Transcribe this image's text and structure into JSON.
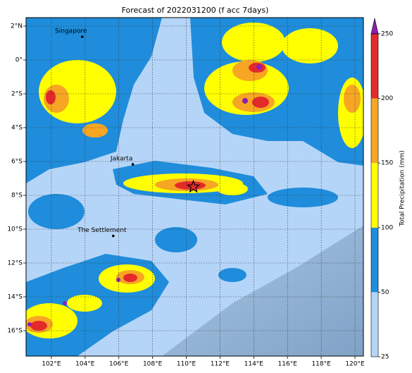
{
  "title": "Forecast of 2022031200 (f acc 7days)",
  "map": {
    "lon_range": [
      100.5,
      120.5
    ],
    "lat_range": [
      -17.5,
      2.5
    ],
    "lon_ticks": [
      {
        "value": 102,
        "label": "102°E"
      },
      {
        "value": 104,
        "label": "104°E"
      },
      {
        "value": 106,
        "label": "106°E"
      },
      {
        "value": 108,
        "label": "108°E"
      },
      {
        "value": 110,
        "label": "110°E"
      },
      {
        "value": 112,
        "label": "112°E"
      },
      {
        "value": 114,
        "label": "114°E"
      },
      {
        "value": 116,
        "label": "116°E"
      },
      {
        "value": 118,
        "label": "118°E"
      },
      {
        "value": 120,
        "label": "120°E"
      }
    ],
    "lat_ticks": [
      {
        "value": 2,
        "label": "2°N"
      },
      {
        "value": 0,
        "label": "0°"
      },
      {
        "value": -2,
        "label": "2°S"
      },
      {
        "value": -4,
        "label": "4°S"
      },
      {
        "value": -6,
        "label": "6°S"
      },
      {
        "value": -8,
        "label": "8°S"
      },
      {
        "value": -10,
        "label": "10°S"
      },
      {
        "value": -12,
        "label": "12°S"
      },
      {
        "value": -14,
        "label": "14°S"
      },
      {
        "value": -16,
        "label": "16°S"
      }
    ],
    "places": [
      {
        "name": "Singapore",
        "lon": 103.83,
        "lat": 1.37
      },
      {
        "name": "Jakarta",
        "lon": 106.83,
        "lat": -6.17
      },
      {
        "name": "The Settlement",
        "lon": 105.67,
        "lat": -10.4
      }
    ],
    "marker": {
      "lon": 110.42,
      "lat": -7.5
    }
  },
  "colorbar": {
    "label": "Total Precipitation (mm)",
    "levels": [
      25,
      50,
      100,
      150,
      200,
      250
    ],
    "colors": [
      "#b5d5f8",
      "#1f8ddb",
      "#ffff00",
      "#f6a623",
      "#e52a2a"
    ],
    "extend_color": "#8e1eb0"
  }
}
